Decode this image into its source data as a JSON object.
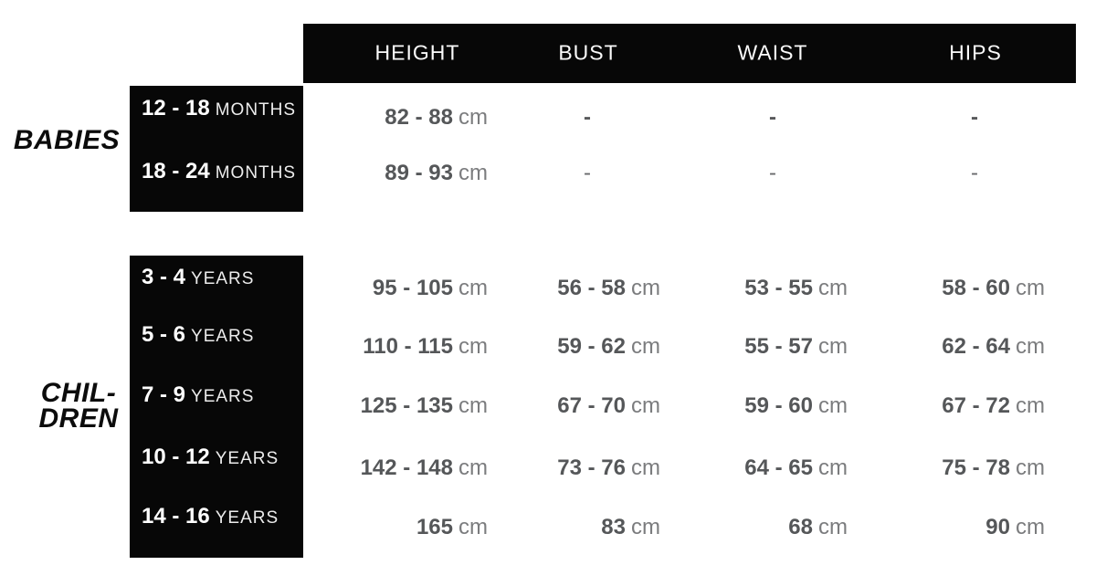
{
  "columns": [
    "HEIGHT",
    "BUST",
    "WAIST",
    "HIPS"
  ],
  "measurement_unit": "cm",
  "empty_value": "-",
  "colors": {
    "box_black": "#070707",
    "header_text": "#fbfbfb",
    "value_number": "#555759",
    "value_unit": "#7b7c7e",
    "group_label": "#0c0c0c"
  },
  "babies": {
    "label": "BABIES",
    "rows": [
      {
        "age": "12 - 18",
        "age_unit": "MONTHS",
        "height": "82 - 88",
        "bust": "-",
        "waist": "-",
        "hips": "-"
      },
      {
        "age": "18 - 24",
        "age_unit": "MONTHS",
        "height": "89 - 93",
        "bust": "-",
        "waist": "-",
        "hips": "-"
      }
    ]
  },
  "children": {
    "label_line1": "CHIL-",
    "label_line2": "DREN",
    "rows": [
      {
        "age": "3 - 4",
        "age_unit": "YEARS",
        "height": "95 - 105",
        "bust": "56 - 58",
        "waist": "53 - 55",
        "hips": "58 - 60"
      },
      {
        "age": "5 - 6",
        "age_unit": "YEARS",
        "height": "110 - 115",
        "bust": "59 - 62",
        "waist": "55 - 57",
        "hips": "62 - 64"
      },
      {
        "age": "7 - 9",
        "age_unit": "YEARS",
        "height": "125 - 135",
        "bust": "67 - 70",
        "waist": "59 - 60",
        "hips": "67 - 72"
      },
      {
        "age": "10 - 12",
        "age_unit": "YEARS",
        "height": "142 - 148",
        "bust": "73 - 76",
        "waist": "64 - 65",
        "hips": "75 - 78"
      },
      {
        "age": "14 - 16",
        "age_unit": "YEARS",
        "height": "165",
        "bust": "83",
        "waist": "68",
        "hips": "90"
      }
    ]
  }
}
